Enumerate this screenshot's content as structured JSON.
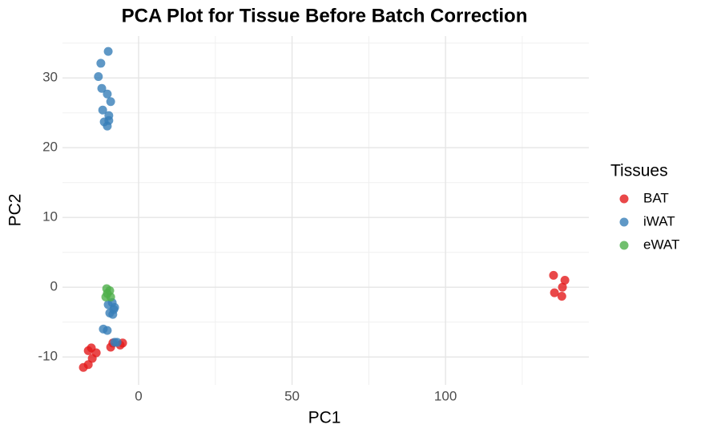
{
  "chart_data": {
    "type": "scatter",
    "title": "PCA Plot for Tissue Before Batch Correction",
    "x_label": "PC1",
    "y_label": "PC2",
    "legend_title": "Tissues",
    "legend_position": "right",
    "xlim": [
      -24.8,
      146.7
    ],
    "ylim": [
      -14.0,
      36.0
    ],
    "xticks": [
      0,
      50,
      100
    ],
    "yticks": [
      -10,
      0,
      10,
      20,
      30
    ],
    "xminor": [
      -25,
      25,
      75,
      125
    ],
    "yminor": [
      -5,
      5,
      15,
      25,
      35
    ],
    "grid": true,
    "series": [
      {
        "name": "BAT",
        "color": "#E41A1C",
        "x": [
          -18.0,
          -16.4,
          -15.1,
          -13.8,
          -16.4,
          -15.4,
          -9.1,
          -8.4,
          -6.0,
          -5.2,
          135.2,
          138.9,
          138.1,
          135.5,
          137.9
        ],
        "values": [
          -11.5,
          -11.1,
          -10.2,
          -9.4,
          -9.1,
          -8.7,
          -8.6,
          -8.0,
          -8.3,
          -8.0,
          1.7,
          1.0,
          0.0,
          -0.8,
          -1.3
        ]
      },
      {
        "name": "iWAT",
        "color": "#377EB8",
        "x": [
          -9.9,
          -12.3,
          -13.1,
          -12.0,
          -10.2,
          -9.1,
          -11.7,
          -9.7,
          -11.2,
          -9.7,
          -10.2,
          -11.5,
          -10.2,
          -9.9,
          -8.6,
          -7.8,
          -9.4,
          -8.4,
          -8.1,
          -7.8,
          -7.0
        ],
        "values": [
          33.8,
          32.1,
          30.2,
          28.5,
          27.7,
          26.6,
          25.4,
          24.6,
          23.7,
          23.9,
          23.1,
          -6.0,
          -6.2,
          -2.5,
          -2.2,
          -2.9,
          -3.7,
          -3.9,
          -3.2,
          -7.9,
          -7.9
        ]
      },
      {
        "name": "eWAT",
        "color": "#4DAF4A",
        "x": [
          -10.4,
          -9.4,
          -10.2,
          -9.1,
          -10.7
        ],
        "values": [
          -0.2,
          -0.5,
          -0.9,
          -1.4,
          -1.4
        ]
      }
    ]
  }
}
